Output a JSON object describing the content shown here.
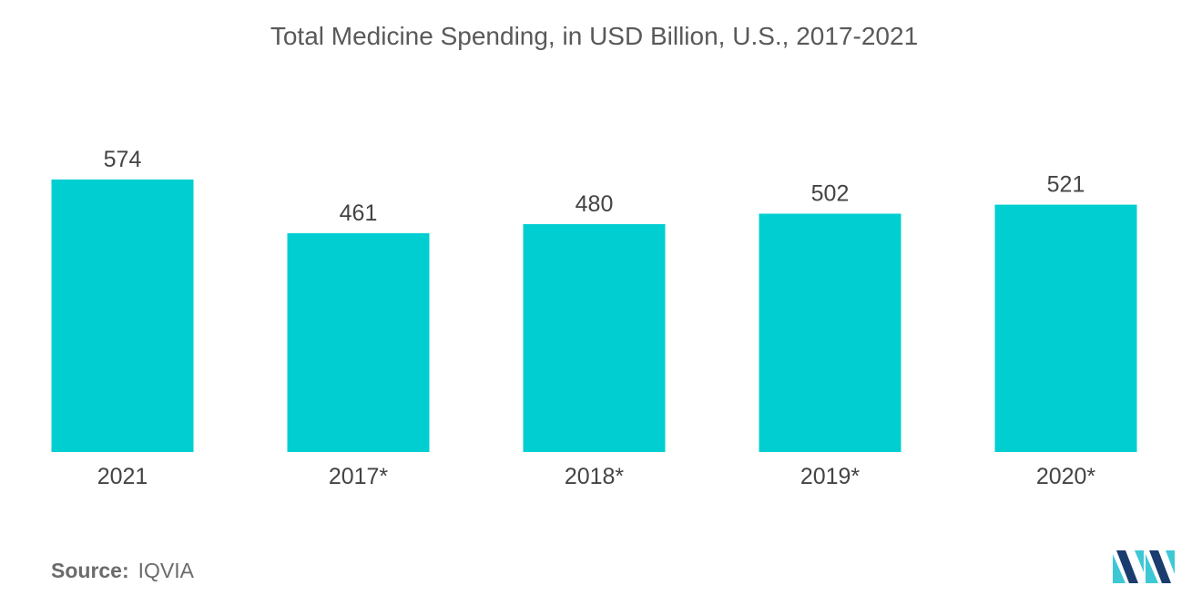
{
  "chart_data": {
    "type": "bar",
    "title": "Total Medicine Spending, in USD Billion, U.S.,  2017-2021",
    "categories": [
      "2021",
      "2017*",
      "2018*",
      "2019*",
      "2020*"
    ],
    "values": [
      574,
      461,
      480,
      502,
      521
    ],
    "xlabel": "",
    "ylabel": "",
    "ylim": [
      0,
      574
    ],
    "grid": false,
    "legend": "none",
    "bar_color": "#00CED1"
  },
  "source": {
    "label": "Source:",
    "value": "IQVIA"
  },
  "logo": {
    "icon": "mordor-intelligence-logo",
    "colors": [
      "#1B3C6E",
      "#3EC8D6"
    ]
  }
}
